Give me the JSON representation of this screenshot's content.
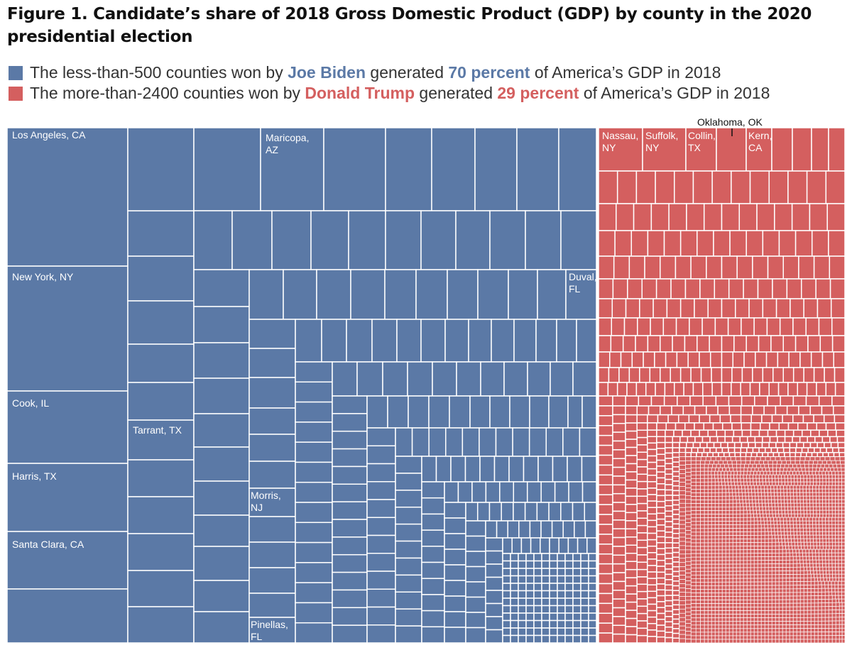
{
  "header": {
    "title": "Figure 1. Candidate’s share of 2018 Gross Domestic Product (GDP) by county in the 2020 presidential election"
  },
  "legend": {
    "biden": {
      "color": "#5b79a6",
      "prefix": "The less-than-500 counties won by ",
      "candidate": "Joe Biden",
      "middle": " generated ",
      "share": "70 percent",
      "suffix": " of America’s GDP in 2018"
    },
    "trump": {
      "color": "#d45f5f",
      "prefix": "The more-than-2400 counties won by ",
      "candidate": "Donald Trump",
      "middle": " generated ",
      "share": "29 percent",
      "suffix": " of America’s GDP in 2018"
    }
  },
  "chart_data": {
    "type": "treemap",
    "groups": [
      {
        "name": "Joe Biden",
        "color": "#5b79a6",
        "gdp_share_percent": 70,
        "labeled_counties": [
          "Los Angeles, CA",
          "New York, NY",
          "Cook, IL",
          "Harris, TX",
          "Santa Clara, CA",
          "Tarrant, TX",
          "Maricopa, AZ",
          "Duval, FL",
          "Morris, NJ",
          "Pinellas, FL"
        ]
      },
      {
        "name": "Donald Trump",
        "color": "#d45f5f",
        "gdp_share_percent": 29,
        "labeled_counties": [
          "Nassau, NY",
          "Suffolk, NY",
          "Collin, TX",
          "Kern, CA"
        ],
        "callout": "Oklahoma, OK"
      }
    ]
  }
}
